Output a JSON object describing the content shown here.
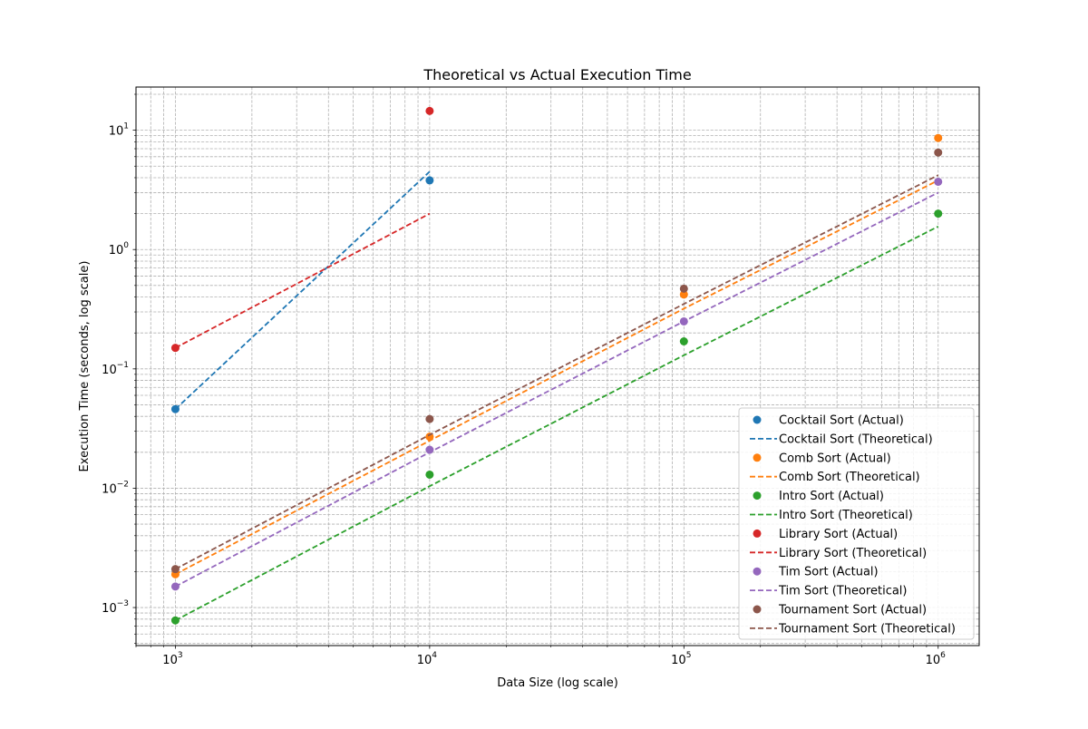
{
  "chart_data": {
    "type": "scatter",
    "title": "Theoretical vs Actual Execution Time",
    "xlabel": "Data Size (log scale)",
    "ylabel": "Execution Time (seconds, log scale)",
    "xscale": "log",
    "yscale": "log",
    "xlim": [
      700,
      1450000
    ],
    "ylim": [
      0.00048,
      23
    ],
    "grid": "on (major and minor)",
    "legend_position": "lower-right",
    "x_ticks": [
      {
        "base": "10",
        "exp": "3"
      },
      {
        "base": "10",
        "exp": "4"
      },
      {
        "base": "10",
        "exp": "5"
      },
      {
        "base": "10",
        "exp": "6"
      }
    ],
    "y_ticks": [
      {
        "base": "10",
        "exp": "−3"
      },
      {
        "base": "10",
        "exp": "−2"
      },
      {
        "base": "10",
        "exp": "−1"
      },
      {
        "base": "10",
        "exp": "0"
      },
      {
        "base": "10",
        "exp": "1"
      }
    ],
    "series": [
      {
        "name": "Cocktail Sort (Actual)",
        "kind": "scatter",
        "color": "#1f77b4",
        "x": [
          1000,
          10000
        ],
        "y": [
          0.046,
          3.8
        ]
      },
      {
        "name": "Cocktail Sort (Theoretical)",
        "kind": "line",
        "color": "#1f77b4",
        "x": [
          1000,
          10000
        ],
        "y": [
          0.046,
          4.5
        ]
      },
      {
        "name": "Comb Sort (Actual)",
        "kind": "scatter",
        "color": "#ff7f0e",
        "x": [
          1000,
          10000,
          100000,
          1000000
        ],
        "y": [
          0.0019,
          0.027,
          0.42,
          8.6
        ]
      },
      {
        "name": "Comb Sort (Theoretical)",
        "kind": "line",
        "color": "#ff7f0e",
        "x": [
          1000,
          10000,
          100000,
          1000000
        ],
        "y": [
          0.0019,
          0.025,
          0.32,
          3.8
        ]
      },
      {
        "name": "Intro Sort (Actual)",
        "kind": "scatter",
        "color": "#2ca02c",
        "x": [
          1000,
          10000,
          100000,
          1000000
        ],
        "y": [
          0.00078,
          0.013,
          0.17,
          2.0
        ]
      },
      {
        "name": "Intro Sort (Theoretical)",
        "kind": "line",
        "color": "#2ca02c",
        "x": [
          1000,
          10000,
          100000,
          1000000
        ],
        "y": [
          0.00078,
          0.0104,
          0.13,
          1.56
        ]
      },
      {
        "name": "Library Sort (Actual)",
        "kind": "scatter",
        "color": "#d62728",
        "x": [
          1000,
          10000
        ],
        "y": [
          0.15,
          14.5
        ]
      },
      {
        "name": "Library Sort (Theoretical)",
        "kind": "line",
        "color": "#d62728",
        "x": [
          1000,
          10000
        ],
        "y": [
          0.15,
          2.0
        ]
      },
      {
        "name": "Tim Sort (Actual)",
        "kind": "scatter",
        "color": "#9467bd",
        "x": [
          1000,
          10000,
          100000,
          1000000
        ],
        "y": [
          0.0015,
          0.021,
          0.25,
          3.7
        ]
      },
      {
        "name": "Tim Sort (Theoretical)",
        "kind": "line",
        "color": "#9467bd",
        "x": [
          1000,
          10000,
          100000,
          1000000
        ],
        "y": [
          0.0015,
          0.02,
          0.25,
          3.0
        ]
      },
      {
        "name": "Tournament Sort (Actual)",
        "kind": "scatter",
        "color": "#8c564b",
        "x": [
          1000,
          10000,
          100000,
          1000000
        ],
        "y": [
          0.0021,
          0.038,
          0.47,
          6.5
        ]
      },
      {
        "name": "Tournament Sort (Theoretical)",
        "kind": "line",
        "color": "#8c564b",
        "x": [
          1000,
          10000,
          100000,
          1000000
        ],
        "y": [
          0.0021,
          0.028,
          0.35,
          4.2
        ]
      }
    ]
  }
}
